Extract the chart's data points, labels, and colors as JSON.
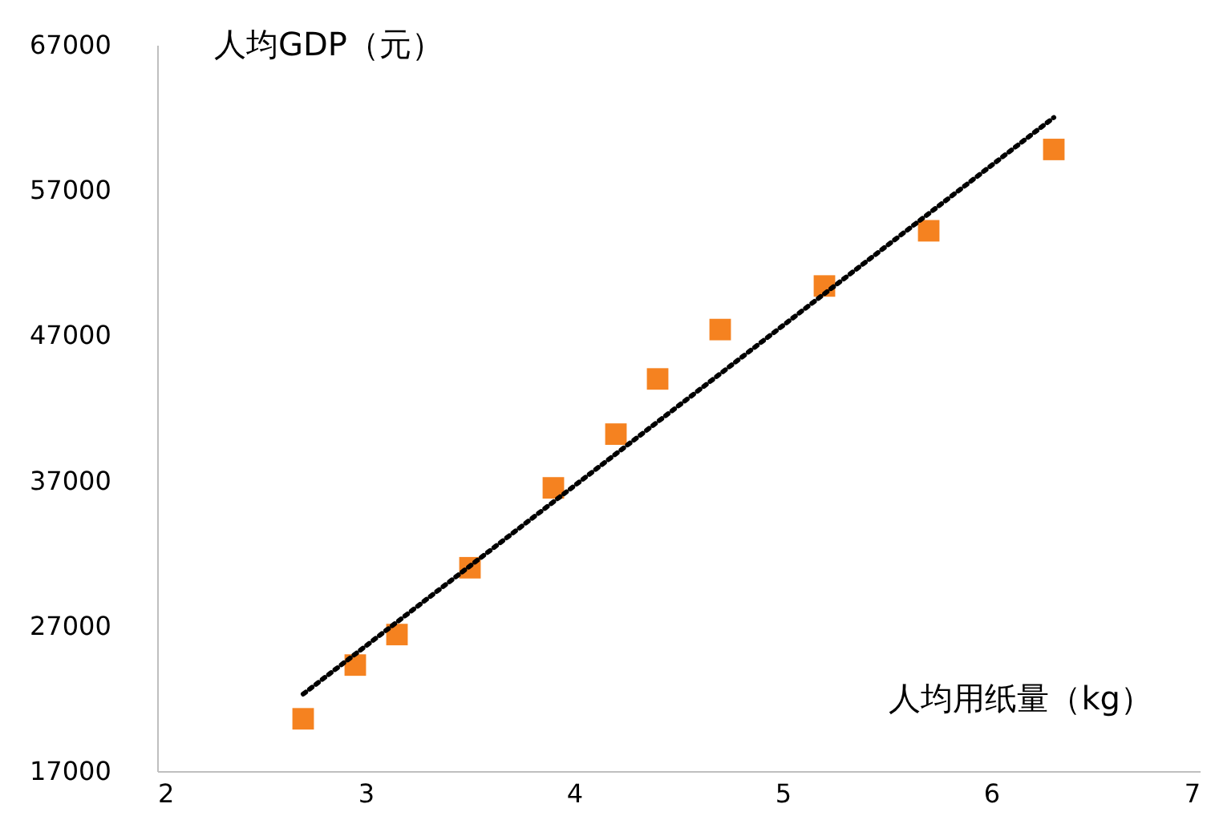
{
  "chart_data": {
    "type": "scatter",
    "xlabel": "人均用纸量（kg）",
    "ylabel": "人均GDP（元）",
    "xlim": [
      2,
      7
    ],
    "ylim": [
      17000,
      67000
    ],
    "xticks": [
      2,
      3,
      4,
      5,
      6,
      7
    ],
    "yticks": [
      17000,
      27000,
      37000,
      47000,
      57000,
      67000
    ],
    "grid": false,
    "series": [
      {
        "type": "scatter",
        "marker": "square",
        "color": "#f58220",
        "x": [
          2.7,
          2.95,
          3.15,
          3.5,
          3.9,
          4.2,
          4.4,
          4.7,
          5.2,
          5.7,
          6.3
        ],
        "values": [
          20600,
          24300,
          26400,
          31000,
          36500,
          40200,
          44000,
          47400,
          50400,
          54200,
          59800
        ]
      },
      {
        "type": "line",
        "line_style": "dotted",
        "color": "#000000",
        "x": [
          2.7,
          6.3
        ],
        "values": [
          22300,
          62000
        ]
      }
    ]
  }
}
